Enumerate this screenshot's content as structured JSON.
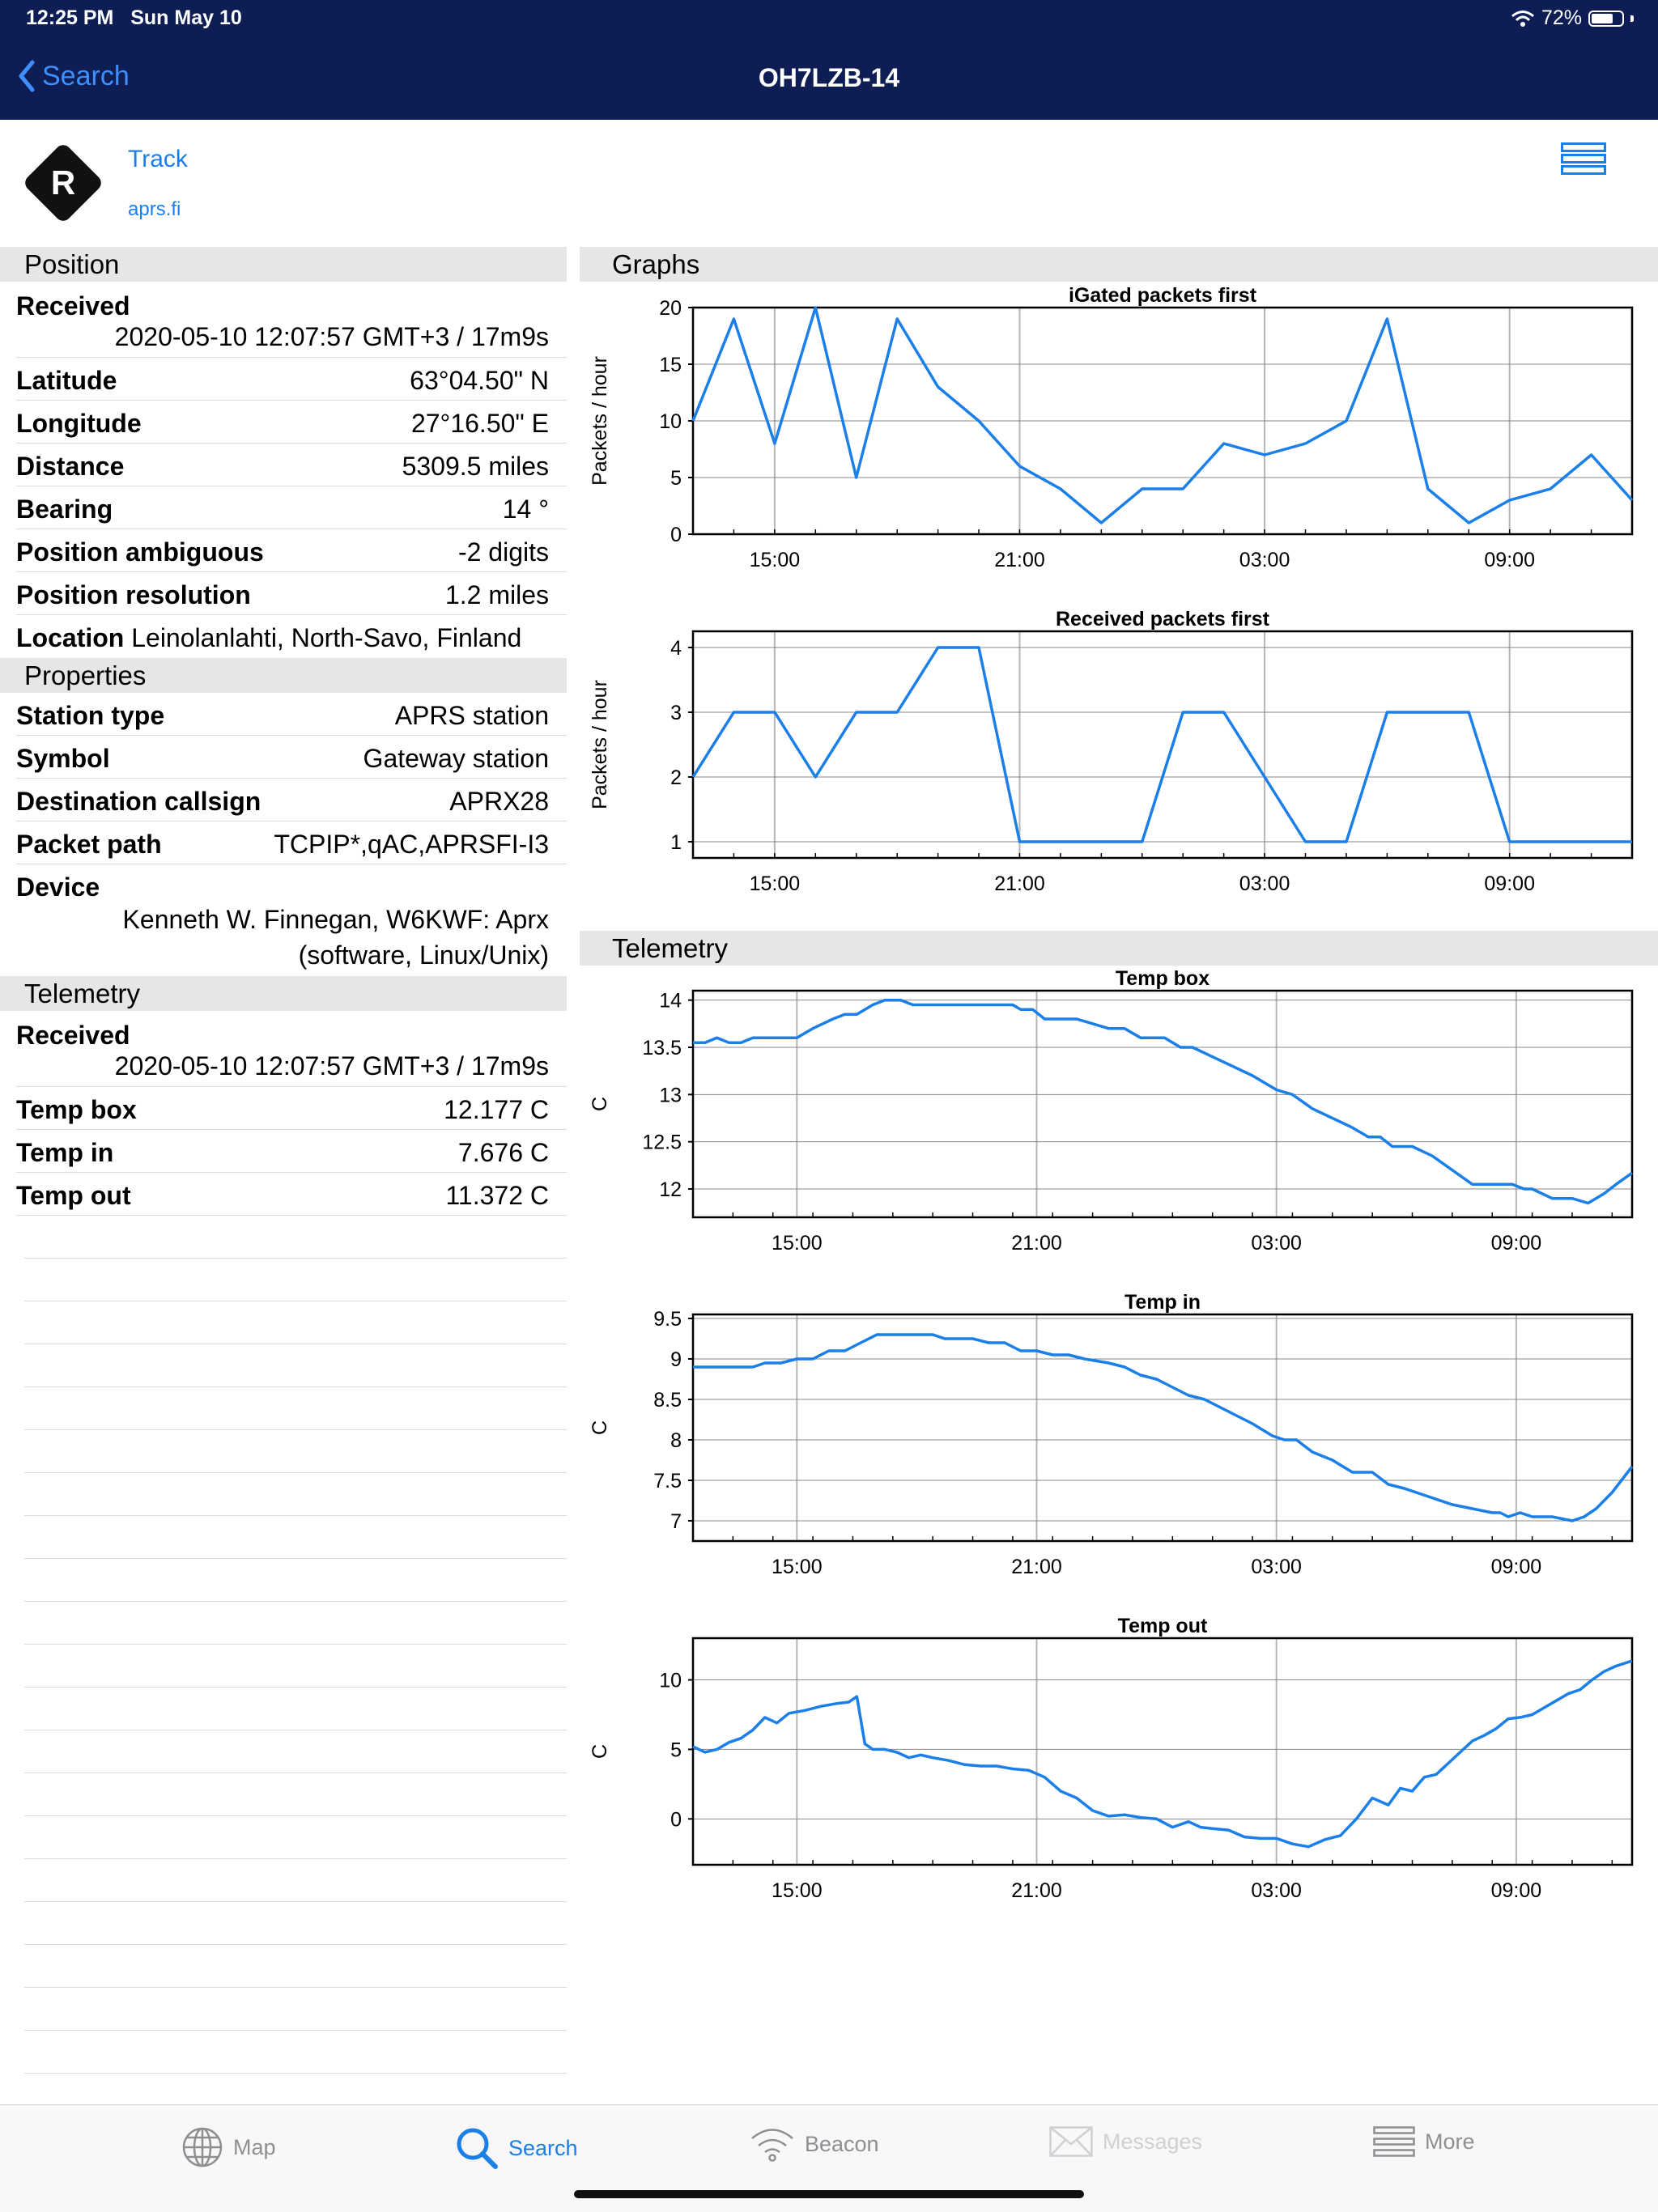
{
  "status": {
    "time": "12:25 PM",
    "date": "Sun May 10",
    "battery": "72%",
    "battery_level": 0.72
  },
  "nav": {
    "back_label": "Search",
    "title": "OH7LZB-14"
  },
  "header": {
    "logo_letter": "R",
    "track_label": "Track",
    "site_label": "aprs.fi"
  },
  "position": {
    "section_title": "Position",
    "received_label": "Received",
    "received_value": "2020-05-10 12:07:57 GMT+3 / 17m9s",
    "rows": [
      {
        "label": "Latitude",
        "value": "63°04.50\" N"
      },
      {
        "label": "Longitude",
        "value": "27°16.50\" E"
      },
      {
        "label": "Distance",
        "value": "5309.5 miles"
      },
      {
        "label": "Bearing",
        "value": "14 °"
      },
      {
        "label": "Position ambiguous",
        "value": "-2 digits"
      },
      {
        "label": "Position resolution",
        "value": "1.2 miles"
      }
    ],
    "location_label": "Location",
    "location_value": "Leinolanlahti, North-Savo, Finland"
  },
  "properties": {
    "section_title": "Properties",
    "rows": [
      {
        "label": "Station type",
        "value": "APRS station"
      },
      {
        "label": "Symbol",
        "value": "Gateway station"
      },
      {
        "label": "Destination callsign",
        "value": "APRX28"
      },
      {
        "label": "Packet path",
        "value": "TCPIP*,qAC,APRSFI-I3"
      }
    ],
    "device_label": "Device",
    "device_line1": "Kenneth W. Finnegan, W6KWF: Aprx",
    "device_line2": "(software, Linux/Unix)"
  },
  "telemetry": {
    "section_title": "Telemetry",
    "received_label": "Received",
    "received_value": "2020-05-10 12:07:57 GMT+3 / 17m9s",
    "rows": [
      {
        "label": "Temp box",
        "value": "12.177 C"
      },
      {
        "label": "Temp in",
        "value": "7.676 C"
      },
      {
        "label": "Temp out",
        "value": "11.372 C"
      }
    ]
  },
  "graphs_title": "Graphs",
  "telemetry_graphs_title": "Telemetry",
  "chart_data": [
    {
      "type": "line",
      "title": "iGated packets first",
      "xlabel": "",
      "ylabel": "Packets / hour",
      "x_ticks": [
        "15:00",
        "21:00",
        "03:00",
        "09:00"
      ],
      "x_tick_pos": [
        2,
        8,
        14,
        20
      ],
      "xlim": [
        0,
        23
      ],
      "ylim": [
        0,
        20
      ],
      "y_ticks": [
        0,
        5,
        10,
        15,
        20
      ],
      "series": [
        {
          "name": "iGated",
          "values": [
            10,
            19,
            8,
            20,
            5,
            19,
            13,
            10,
            6,
            4,
            1,
            4,
            4,
            8,
            7,
            8,
            10,
            19,
            4,
            1,
            3,
            4,
            7,
            3
          ]
        }
      ]
    },
    {
      "type": "line",
      "title": "Received packets first",
      "xlabel": "",
      "ylabel": "Packets / hour",
      "x_ticks": [
        "15:00",
        "21:00",
        "03:00",
        "09:00"
      ],
      "x_tick_pos": [
        2,
        8,
        14,
        20
      ],
      "xlim": [
        0,
        23
      ],
      "ylim": [
        0.75,
        4.25
      ],
      "y_ticks": [
        1,
        2,
        3,
        4
      ],
      "series": [
        {
          "name": "Received",
          "values": [
            2,
            3,
            3,
            2,
            3,
            3,
            4,
            4,
            1,
            1,
            1,
            1,
            3,
            3,
            2,
            1,
            1,
            3,
            3,
            3,
            1,
            1,
            1,
            1
          ]
        }
      ]
    },
    {
      "type": "line",
      "title": "Temp box",
      "xlabel": "",
      "ylabel": "C",
      "x_ticks": [
        "15:00",
        "21:00",
        "03:00",
        "09:00"
      ],
      "x_tick_pos": [
        2.6,
        8.6,
        14.6,
        20.6
      ],
      "xlim": [
        0,
        23.5
      ],
      "ylim": [
        11.7,
        14.1
      ],
      "y_ticks": [
        12,
        12.5,
        13,
        13.5,
        14
      ],
      "series": [
        {
          "name": "Temp box",
          "x": [
            0,
            0.3,
            0.6,
            0.9,
            1.2,
            1.5,
            2,
            2.6,
            3,
            3.5,
            3.8,
            4.1,
            4.5,
            4.8,
            5.2,
            5.5,
            6,
            7,
            8,
            8.2,
            8.5,
            8.8,
            9.2,
            9.6,
            10,
            10.4,
            10.8,
            11.2,
            11.5,
            11.8,
            12.2,
            12.5,
            13,
            13.5,
            14,
            14.6,
            15,
            15.5,
            16,
            16.5,
            16.9,
            17.2,
            17.5,
            18,
            18.5,
            19,
            19.5,
            20,
            20.5,
            20.8,
            21,
            21.5,
            22,
            22.4,
            22.8,
            23.1,
            23.5
          ],
          "values": [
            13.55,
            13.55,
            13.6,
            13.55,
            13.55,
            13.6,
            13.6,
            13.6,
            13.7,
            13.8,
            13.85,
            13.85,
            13.95,
            14.0,
            14.0,
            13.95,
            13.95,
            13.95,
            13.95,
            13.9,
            13.9,
            13.8,
            13.8,
            13.8,
            13.75,
            13.7,
            13.7,
            13.6,
            13.6,
            13.6,
            13.5,
            13.5,
            13.4,
            13.3,
            13.2,
            13.05,
            13.0,
            12.85,
            12.75,
            12.65,
            12.55,
            12.55,
            12.45,
            12.45,
            12.35,
            12.2,
            12.05,
            12.05,
            12.05,
            12.0,
            12.0,
            11.9,
            11.9,
            11.85,
            11.95,
            12.05,
            12.17
          ]
        }
      ]
    },
    {
      "type": "line",
      "title": "Temp in",
      "xlabel": "",
      "ylabel": "C",
      "x_ticks": [
        "15:00",
        "21:00",
        "03:00",
        "09:00"
      ],
      "x_tick_pos": [
        2.6,
        8.6,
        14.6,
        20.6
      ],
      "xlim": [
        0,
        23.5
      ],
      "ylim": [
        6.75,
        9.55
      ],
      "y_ticks": [
        7,
        7.5,
        8,
        8.5,
        9,
        9.5
      ],
      "series": [
        {
          "name": "Temp in",
          "x": [
            0,
            1.5,
            1.8,
            2.2,
            2.6,
            3,
            3.4,
            3.8,
            4.2,
            4.6,
            5,
            5.5,
            6,
            6.3,
            6.6,
            7,
            7.4,
            7.8,
            8.2,
            8.6,
            9,
            9.4,
            9.8,
            10.4,
            10.8,
            11.2,
            11.6,
            12,
            12.4,
            12.8,
            13.2,
            13.6,
            14,
            14.5,
            14.8,
            15.1,
            15.5,
            16,
            16.5,
            17,
            17.4,
            17.8,
            18.4,
            19,
            19.5,
            20,
            20.2,
            20.4,
            20.7,
            21,
            21.5,
            22,
            22.3,
            22.6,
            23,
            23.5
          ],
          "values": [
            8.9,
            8.9,
            8.95,
            8.95,
            9.0,
            9.0,
            9.1,
            9.1,
            9.2,
            9.3,
            9.3,
            9.3,
            9.3,
            9.25,
            9.25,
            9.25,
            9.2,
            9.2,
            9.1,
            9.1,
            9.05,
            9.05,
            9.0,
            8.95,
            8.9,
            8.8,
            8.75,
            8.65,
            8.55,
            8.5,
            8.4,
            8.3,
            8.2,
            8.05,
            8.0,
            8.0,
            7.85,
            7.75,
            7.6,
            7.6,
            7.45,
            7.4,
            7.3,
            7.2,
            7.15,
            7.1,
            7.1,
            7.05,
            7.1,
            7.05,
            7.05,
            7.0,
            7.05,
            7.15,
            7.35,
            7.67
          ]
        }
      ]
    },
    {
      "type": "line",
      "title": "Temp out",
      "xlabel": "",
      "ylabel": "C",
      "x_ticks": [
        "15:00",
        "21:00",
        "03:00",
        "09:00"
      ],
      "x_tick_pos": [
        2.6,
        8.6,
        14.6,
        20.6
      ],
      "xlim": [
        0,
        23.5
      ],
      "ylim": [
        -3.3,
        13
      ],
      "y_ticks": [
        0,
        5,
        10
      ],
      "series": [
        {
          "name": "Temp out",
          "x": [
            0,
            0.3,
            0.6,
            0.9,
            1.2,
            1.5,
            1.8,
            2.1,
            2.4,
            2.8,
            3.2,
            3.6,
            3.9,
            4.1,
            4.3,
            4.5,
            4.8,
            5.1,
            5.4,
            5.7,
            6,
            6.4,
            6.8,
            7.2,
            7.6,
            8,
            8.4,
            8.8,
            9.2,
            9.6,
            10,
            10.4,
            10.8,
            11.2,
            11.6,
            12,
            12.4,
            12.7,
            13,
            13.4,
            13.8,
            14.2,
            14.6,
            15,
            15.4,
            15.8,
            16.2,
            16.6,
            17,
            17.4,
            17.7,
            18,
            18.3,
            18.6,
            18.9,
            19.2,
            19.5,
            19.8,
            20.1,
            20.4,
            20.7,
            21,
            21.3,
            21.6,
            21.9,
            22.2,
            22.5,
            22.8,
            23.1,
            23.5
          ],
          "values": [
            5.2,
            4.8,
            5.0,
            5.5,
            5.8,
            6.4,
            7.3,
            6.9,
            7.6,
            7.8,
            8.1,
            8.3,
            8.4,
            8.8,
            5.4,
            5.0,
            5.0,
            4.8,
            4.4,
            4.6,
            4.4,
            4.2,
            3.9,
            3.8,
            3.8,
            3.6,
            3.5,
            3.0,
            2.0,
            1.5,
            0.6,
            0.2,
            0.3,
            0.1,
            0.0,
            -0.6,
            -0.2,
            -0.6,
            -0.7,
            -0.8,
            -1.3,
            -1.4,
            -1.4,
            -1.8,
            -2.0,
            -1.5,
            -1.2,
            0.0,
            1.5,
            1.0,
            2.2,
            2.0,
            3.0,
            3.2,
            4.0,
            4.8,
            5.6,
            6.0,
            6.5,
            7.2,
            7.3,
            7.5,
            8.0,
            8.5,
            9.0,
            9.3,
            10.0,
            10.6,
            11.0,
            11.37
          ]
        }
      ]
    }
  ],
  "tabs": [
    {
      "label": "Map",
      "icon": "globe-icon"
    },
    {
      "label": "Search",
      "icon": "search-icon"
    },
    {
      "label": "Beacon",
      "icon": "wifi-icon"
    },
    {
      "label": "Messages",
      "icon": "envelope-icon"
    },
    {
      "label": "More",
      "icon": "list-icon"
    }
  ],
  "colors": {
    "nav_bg": "#0e1e54",
    "accent": "#1a7fe8",
    "line": "#1a7fe8",
    "section_bg": "#e6e6e6"
  }
}
